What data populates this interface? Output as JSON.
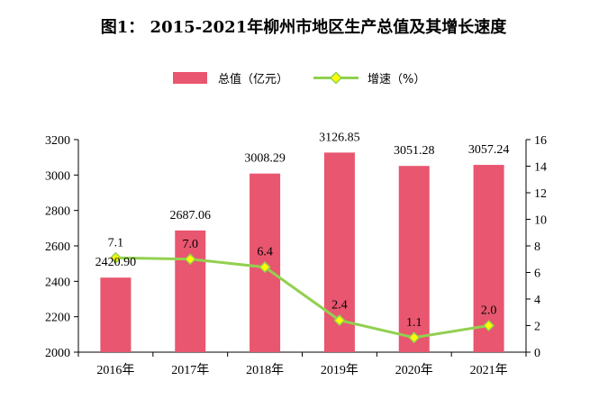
{
  "chart_data": {
    "type": "bar",
    "title": "图1：   2015-2021年柳州市地区生产总值及其增长速度",
    "categories": [
      "2016年",
      "2017年",
      "2018年",
      "2019年",
      "2020年",
      "2021年"
    ],
    "series": [
      {
        "name": "总值（亿元）",
        "type": "bar",
        "axis": "left",
        "values": [
          2420.9,
          2687.06,
          3008.29,
          3126.85,
          3051.28,
          3057.24
        ],
        "labels": [
          "2420.90",
          "2687.06",
          "3008.29",
          "3126.85",
          "3051.28",
          "3057.24"
        ],
        "color": "#e8566f"
      },
      {
        "name": "增速（%）",
        "type": "line",
        "axis": "right",
        "values": [
          7.1,
          7.0,
          6.4,
          2.4,
          1.1,
          2.0
        ],
        "labels": [
          "7.1",
          "7.0",
          "6.4",
          "2.4",
          "1.1",
          "2.0"
        ],
        "line_color": "#92d050",
        "marker_color": "#ffff00"
      }
    ],
    "y_left": {
      "ylim": [
        2000,
        3200
      ],
      "ticks": [
        2000,
        2200,
        2400,
        2600,
        2800,
        3000,
        3200
      ]
    },
    "y_right": {
      "ylim": [
        0,
        16
      ],
      "ticks": [
        0,
        2,
        4,
        6,
        8,
        10,
        12,
        14,
        16
      ]
    },
    "legend_position": "top-center",
    "grid": false
  }
}
